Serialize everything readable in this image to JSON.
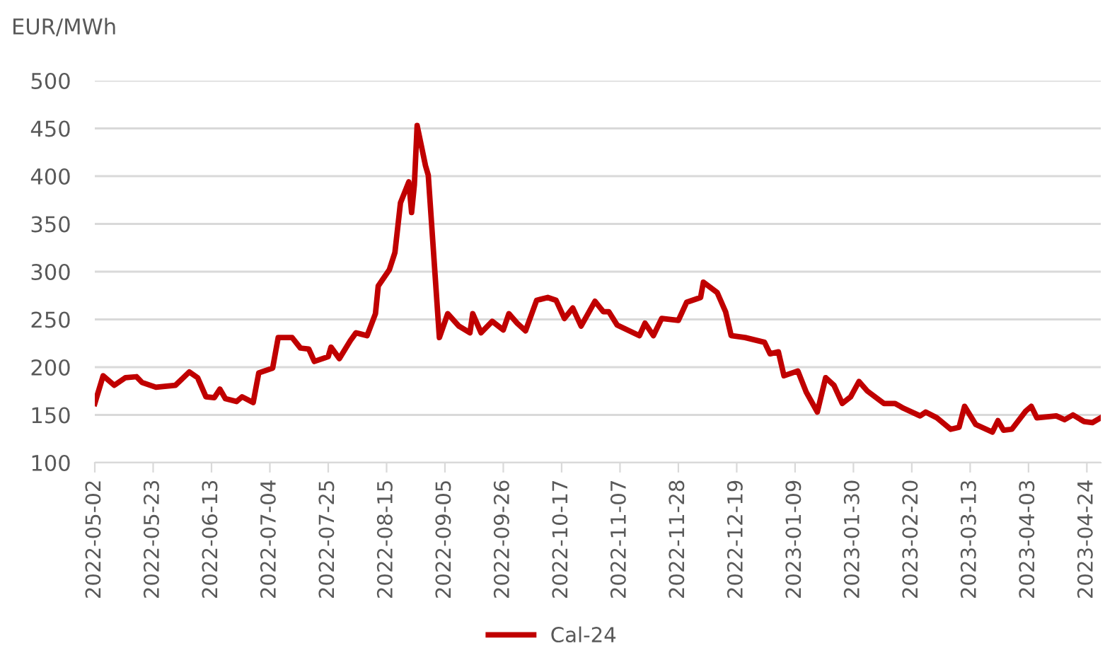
{
  "chart_data": {
    "type": "line",
    "ylabel": "EUR/MWh",
    "x": [
      "2022-05-02",
      "2022-05-05",
      "2022-05-09",
      "2022-05-13",
      "2022-05-17",
      "2022-05-19",
      "2022-05-24",
      "2022-05-31",
      "2022-06-05",
      "2022-06-08",
      "2022-06-11",
      "2022-06-14",
      "2022-06-16",
      "2022-06-18",
      "2022-06-22",
      "2022-06-24",
      "2022-06-28",
      "2022-06-30",
      "2022-07-05",
      "2022-07-07",
      "2022-07-12",
      "2022-07-15",
      "2022-07-18",
      "2022-07-20",
      "2022-07-25",
      "2022-07-26",
      "2022-07-29",
      "2022-08-02",
      "2022-08-04",
      "2022-08-08",
      "2022-08-11",
      "2022-08-12",
      "2022-08-16",
      "2022-08-18",
      "2022-08-20",
      "2022-08-23",
      "2022-08-24",
      "2022-08-25",
      "2022-08-26",
      "2022-08-29",
      "2022-08-30",
      "2022-09-03",
      "2022-09-06",
      "2022-09-10",
      "2022-09-14",
      "2022-09-15",
      "2022-09-18",
      "2022-09-22",
      "2022-09-26",
      "2022-09-28",
      "2022-10-01",
      "2022-10-04",
      "2022-10-08",
      "2022-10-12",
      "2022-10-15",
      "2022-10-18",
      "2022-10-21",
      "2022-10-24",
      "2022-10-29",
      "2022-11-01",
      "2022-11-03",
      "2022-11-06",
      "2022-11-14",
      "2022-11-16",
      "2022-11-19",
      "2022-11-22",
      "2022-11-28",
      "2022-12-01",
      "2022-12-06",
      "2022-12-07",
      "2022-12-12",
      "2022-12-15",
      "2022-12-17",
      "2022-12-22",
      "2022-12-29",
      "2022-12-31",
      "2023-01-03",
      "2023-01-05",
      "2023-01-10",
      "2023-01-13",
      "2023-01-17",
      "2023-01-20",
      "2023-01-23",
      "2023-01-26",
      "2023-01-29",
      "2023-02-01",
      "2023-02-04",
      "2023-02-10",
      "2023-02-14",
      "2023-02-17",
      "2023-02-23",
      "2023-02-25",
      "2023-03-01",
      "2023-03-06",
      "2023-03-09",
      "2023-03-11",
      "2023-03-15",
      "2023-03-21",
      "2023-03-23",
      "2023-03-25",
      "2023-03-28",
      "2023-04-02",
      "2023-04-04",
      "2023-04-06",
      "2023-04-13",
      "2023-04-16",
      "2023-04-19",
      "2023-04-23",
      "2023-04-26",
      "2023-04-29"
    ],
    "series": [
      {
        "name": "Cal-24",
        "color": "#c00000",
        "values": [
          162,
          191,
          181,
          189,
          190,
          184,
          179,
          181,
          195,
          189,
          169,
          168,
          177,
          167,
          164,
          169,
          163,
          194,
          199,
          231,
          231,
          220,
          219,
          206,
          211,
          221,
          209,
          228,
          236,
          233,
          256,
          285,
          302,
          320,
          372,
          394,
          362,
          391,
          453,
          411,
          401,
          231,
          256,
          243,
          236,
          256,
          236,
          248,
          239,
          256,
          246,
          238,
          270,
          273,
          270,
          251,
          262,
          243,
          269,
          258,
          258,
          244,
          233,
          246,
          233,
          251,
          249,
          268,
          273,
          289,
          278,
          258,
          233,
          231,
          226,
          214,
          216,
          191,
          196,
          174,
          153,
          189,
          181,
          162,
          169,
          185,
          175,
          162,
          162,
          157,
          149,
          153,
          147,
          135,
          137,
          159,
          140,
          132,
          144,
          134,
          135,
          154,
          159,
          147,
          149,
          145,
          150,
          143,
          142,
          147
        ]
      }
    ],
    "xlim": [
      "2022-05-02",
      "2023-04-29"
    ],
    "xticks": [
      "2022-05-02",
      "2022-05-23",
      "2022-06-13",
      "2022-07-04",
      "2022-07-25",
      "2022-08-15",
      "2022-09-05",
      "2022-09-26",
      "2022-10-17",
      "2022-11-07",
      "2022-11-28",
      "2022-12-19",
      "2023-01-09",
      "2023-01-30",
      "2023-02-20",
      "2023-03-13",
      "2023-04-03",
      "2023-04-24"
    ],
    "ylim": [
      100,
      500
    ],
    "yticks": [
      100,
      150,
      200,
      250,
      300,
      350,
      400,
      450,
      500
    ],
    "grid": "y",
    "legend": "bottom",
    "marker": "none",
    "line_style": "solid"
  }
}
